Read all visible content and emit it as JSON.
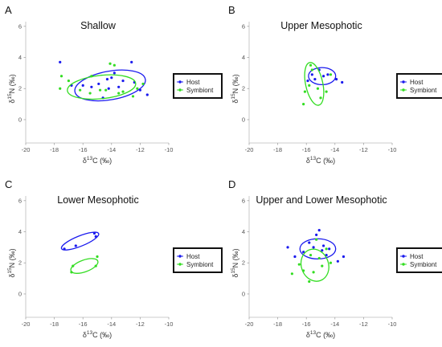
{
  "legend_colors": {
    "host": "#1a1aee",
    "symbiont": "#33dd22"
  },
  "chart_data": [
    {
      "panel": "A",
      "type": "scatter",
      "title": "Shallow",
      "xlabel": "δ13C (‰)",
      "ylabel": "δ15N (‰)",
      "xlim": [
        -20,
        -10
      ],
      "ylim": [
        -1.5,
        6.3
      ],
      "xticks": [
        "-20",
        "-18",
        "-16",
        "-14",
        "-12",
        "-10"
      ],
      "yticks": [
        "0",
        "2",
        "4",
        "6"
      ],
      "grid": false,
      "legend_position": "right",
      "series": [
        {
          "name": "Host",
          "color": "#1a1aee",
          "points": [
            [
              -17.6,
              3.7
            ],
            [
              -16.8,
              2.2
            ],
            [
              -16,
              2.2
            ],
            [
              -15.4,
              2.1
            ],
            [
              -14.9,
              2.3
            ],
            [
              -14.6,
              1.4
            ],
            [
              -14.3,
              2.6
            ],
            [
              -14.2,
              2.0
            ],
            [
              -14,
              2.7
            ],
            [
              -13.8,
              3.0
            ],
            [
              -13.5,
              2.1
            ],
            [
              -13.2,
              2.5
            ],
            [
              -12.6,
              3.7
            ],
            [
              -12.4,
              2.4
            ],
            [
              -12,
              1.9
            ],
            [
              -11.5,
              1.6
            ]
          ],
          "ellipse": {
            "cx": -14.1,
            "cy": 2.2,
            "rx": 2.5,
            "ry": 0.92,
            "angle": 10
          }
        },
        {
          "name": "Symbiont",
          "color": "#33dd22",
          "points": [
            [
              -17.6,
              2.0
            ],
            [
              -17.5,
              2.8
            ],
            [
              -17,
              2.5
            ],
            [
              -16.2,
              1.9
            ],
            [
              -15.5,
              1.7
            ],
            [
              -15.4,
              2.8
            ],
            [
              -14.8,
              1.9
            ],
            [
              -14.4,
              1.9
            ],
            [
              -14.1,
              3.6
            ],
            [
              -13.8,
              3.5
            ],
            [
              -13.5,
              1.7
            ],
            [
              -13.2,
              1.8
            ],
            [
              -12.5,
              1.5
            ],
            [
              -12.2,
              2.0
            ],
            [
              -11.8,
              2.3
            ]
          ],
          "ellipse": {
            "cx": -14.7,
            "cy": 2.1,
            "rx": 2.4,
            "ry": 0.75,
            "angle": 6
          }
        }
      ]
    },
    {
      "panel": "B",
      "type": "scatter",
      "title": "Upper Mesophotic",
      "xlabel": "δ13C (‰)",
      "ylabel": "δ15N (‰)",
      "xlim": [
        -20,
        -10
      ],
      "ylim": [
        -1.5,
        6.3
      ],
      "xticks": [
        "-20",
        "-18",
        "-16",
        "-14",
        "-12",
        "-10"
      ],
      "yticks": [
        "0",
        "2",
        "4",
        "6"
      ],
      "grid": false,
      "legend_position": "right",
      "series": [
        {
          "name": "Host",
          "color": "#1a1aee",
          "points": [
            [
              -15.9,
              2.5
            ],
            [
              -15.6,
              2.9
            ],
            [
              -15.4,
              2.6
            ],
            [
              -15.1,
              3.2
            ],
            [
              -14.8,
              2.8
            ],
            [
              -14.5,
              2.9
            ],
            [
              -13.9,
              2.6
            ],
            [
              -13.5,
              2.4
            ]
          ],
          "ellipse": {
            "cx": -14.9,
            "cy": 2.8,
            "rx": 0.95,
            "ry": 0.55,
            "angle": 0
          }
        },
        {
          "name": "Symbiont",
          "color": "#33dd22",
          "points": [
            [
              -16.2,
              1.0
            ],
            [
              -16.1,
              1.8
            ],
            [
              -15.8,
              2.2
            ],
            [
              -15.7,
              3.5
            ],
            [
              -15.6,
              3.2
            ],
            [
              -15.2,
              2.0
            ],
            [
              -15.0,
              1.4
            ],
            [
              -14.6,
              1.8
            ],
            [
              -14.3,
              2.9
            ]
          ],
          "ellipse": {
            "cx": -15.45,
            "cy": 2.3,
            "rx": 0.6,
            "ry": 1.4,
            "angle": 12
          }
        }
      ]
    },
    {
      "panel": "C",
      "type": "scatter",
      "title": "Lower Mesophotic",
      "xlabel": "δ13C (‰)",
      "ylabel": "δ15N (‰)",
      "xlim": [
        -20,
        -10
      ],
      "ylim": [
        -1.5,
        6.3
      ],
      "xticks": [
        "-20",
        "-18",
        "-16",
        "-14",
        "-12",
        "-10"
      ],
      "yticks": [
        "0",
        "2",
        "4",
        "6"
      ],
      "grid": false,
      "legend_position": "right",
      "series": [
        {
          "name": "Host",
          "color": "#1a1aee",
          "points": [
            [
              -17.3,
              2.9
            ],
            [
              -16.5,
              3.1
            ],
            [
              -15.2,
              3.9
            ],
            [
              -15.1,
              3.7
            ]
          ],
          "ellipse": {
            "cx": -16.2,
            "cy": 3.4,
            "rx": 1.4,
            "ry": 0.33,
            "angle": 22
          }
        },
        {
          "name": "Symbiont",
          "color": "#33dd22",
          "points": [
            [
              -16.8,
              1.4
            ],
            [
              -16.7,
              1.8
            ],
            [
              -15.1,
              1.8
            ],
            [
              -15.0,
              2.4
            ]
          ],
          "ellipse": {
            "cx": -15.9,
            "cy": 1.8,
            "rx": 1.0,
            "ry": 0.38,
            "angle": 20
          }
        }
      ]
    },
    {
      "panel": "D",
      "type": "scatter",
      "title": "Upper and Lower Mesophotic",
      "xlabel": "δ13C (‰)",
      "ylabel": "δ15N (‰)",
      "xlim": [
        -20,
        -10
      ],
      "ylim": [
        -1.5,
        6.3
      ],
      "xticks": [
        "-20",
        "-18",
        "-16",
        "-14",
        "-12",
        "-10"
      ],
      "yticks": [
        "0",
        "2",
        "4",
        "6"
      ],
      "grid": false,
      "legend_position": "right",
      "series": [
        {
          "name": "Host",
          "color": "#1a1aee",
          "points": [
            [
              -17.3,
              3.0
            ],
            [
              -16.8,
              2.4
            ],
            [
              -16.2,
              2.7
            ],
            [
              -15.8,
              3.3
            ],
            [
              -15.5,
              3.0
            ],
            [
              -15.3,
              3.8
            ],
            [
              -15.1,
              4.1
            ],
            [
              -14.9,
              2.8
            ],
            [
              -14.8,
              3.1
            ],
            [
              -14.6,
              2.5
            ],
            [
              -14.4,
              2.9
            ],
            [
              -13.8,
              2.1
            ],
            [
              -13.4,
              2.4
            ]
          ],
          "ellipse": {
            "cx": -15.2,
            "cy": 2.9,
            "rx": 1.25,
            "ry": 0.65,
            "angle": 0
          }
        },
        {
          "name": "Symbiont",
          "color": "#33dd22",
          "points": [
            [
              -17.0,
              1.3
            ],
            [
              -16.5,
              1.9
            ],
            [
              -16.2,
              1.5
            ],
            [
              -15.8,
              0.8
            ],
            [
              -15.7,
              2.5
            ],
            [
              -15.5,
              1.4
            ],
            [
              -15.3,
              3.5
            ],
            [
              -15.1,
              2.3
            ],
            [
              -14.9,
              1.8
            ],
            [
              -14.6,
              2.9
            ],
            [
              -14.3,
              2.0
            ]
          ],
          "ellipse": {
            "cx": -15.4,
            "cy": 1.85,
            "rx": 0.95,
            "ry": 1.05,
            "angle": 20
          }
        }
      ]
    }
  ]
}
